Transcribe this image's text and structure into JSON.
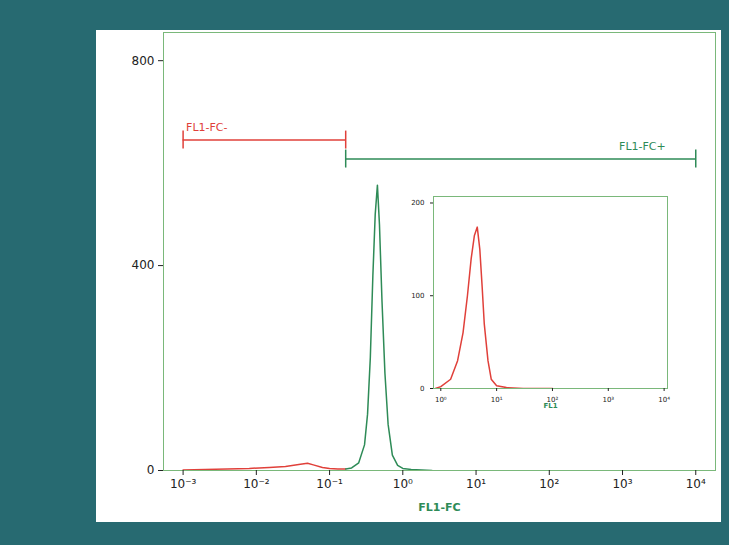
{
  "chart_data": [
    {
      "type": "line",
      "xlabel": "FL1-FC",
      "log": "x",
      "xlim": [
        0.00054,
        18600
      ],
      "xticks": [
        {
          "value": 0.001,
          "label": "10⁻³"
        },
        {
          "value": 0.01,
          "label": "10⁻²"
        },
        {
          "value": 0.1,
          "label": "10⁻¹"
        },
        {
          "value": 1,
          "label": "10⁰"
        },
        {
          "value": 10,
          "label": "10¹"
        },
        {
          "value": 100,
          "label": "10²"
        },
        {
          "value": 1000,
          "label": "10³"
        },
        {
          "value": 10000,
          "label": "10⁴"
        }
      ],
      "ylim": [
        0,
        855
      ],
      "yticks": [
        0,
        400,
        800
      ],
      "grid": false,
      "series": [
        {
          "name": "FL1-FC-",
          "color": "#e0403a",
          "x": [
            0.001,
            0.002,
            0.004,
            0.008,
            0.015,
            0.025,
            0.04,
            0.05,
            0.06,
            0.08,
            0.1,
            0.13,
            0.166
          ],
          "values": [
            1,
            2,
            3,
            4,
            6,
            8,
            12,
            14,
            11,
            6,
            4,
            3,
            3
          ]
        },
        {
          "name": "FL1-FC+",
          "color": "#2e8b57",
          "x": [
            0.166,
            0.2,
            0.25,
            0.3,
            0.33,
            0.36,
            0.39,
            0.42,
            0.45,
            0.48,
            0.52,
            0.57,
            0.63,
            0.72,
            0.85,
            1.0,
            1.3,
            1.8,
            2.5
          ],
          "values": [
            3,
            5,
            15,
            50,
            110,
            220,
            380,
            500,
            557,
            480,
            330,
            190,
            90,
            30,
            10,
            4,
            2,
            1,
            0
          ]
        }
      ],
      "gates": [
        {
          "label": "FL1-FC-",
          "color": "#e0403a",
          "x": [
            0.001,
            0.166
          ],
          "y": 645
        },
        {
          "label": "FL1-FC+",
          "color": "#2e8b57",
          "x": [
            0.166,
            10000
          ],
          "y": 608
        }
      ]
    },
    {
      "type": "line",
      "xlabel": "FL1",
      "log": "x",
      "xlim": [
        0.74,
        11500
      ],
      "xticks": [
        {
          "value": 1,
          "label": "10⁰"
        },
        {
          "value": 10,
          "label": "10¹"
        },
        {
          "value": 100,
          "label": "10²"
        },
        {
          "value": 1000,
          "label": "10³"
        },
        {
          "value": 10000,
          "label": "10⁴"
        }
      ],
      "ylim": [
        0,
        207
      ],
      "yticks": [
        0,
        100,
        200
      ],
      "grid": false,
      "series": [
        {
          "name": "FL1",
          "color": "#e0403a",
          "x": [
            0.8,
            1.0,
            1.5,
            2,
            2.5,
            3,
            3.5,
            4,
            4.5,
            5,
            5.5,
            6,
            7,
            8,
            10,
            15,
            30,
            100
          ],
          "values": [
            0,
            2,
            10,
            30,
            60,
            100,
            140,
            165,
            174,
            150,
            110,
            70,
            30,
            10,
            3,
            1,
            0,
            0
          ]
        }
      ]
    }
  ]
}
